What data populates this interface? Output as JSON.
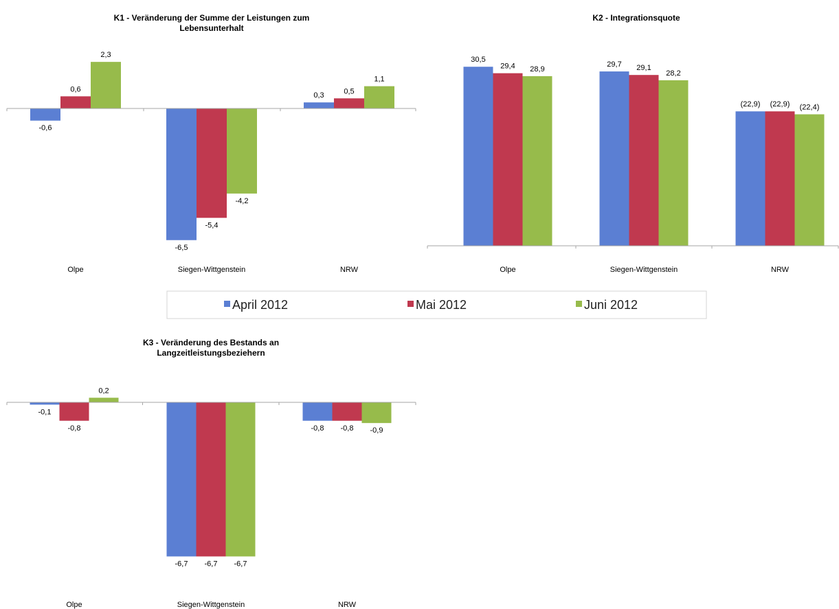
{
  "legend": [
    {
      "name": "April 2012",
      "color": "#5b7fd3"
    },
    {
      "name": "Mai 2012",
      "color": "#c0394f"
    },
    {
      "name": "Juni 2012",
      "color": "#97bb4b"
    }
  ],
  "chart_data": [
    {
      "id": "k1",
      "type": "bar",
      "title": [
        "K1 - Veränderung der Summe der Leistungen zum",
        "Lebensunterhalt"
      ],
      "categories": [
        "Olpe",
        "Siegen-Wittgenstein",
        "NRW"
      ],
      "series": [
        {
          "name": "April 2012",
          "values": [
            -0.6,
            -6.5,
            0.3
          ],
          "labels": [
            "-0,6",
            "-6,5",
            "0,3"
          ]
        },
        {
          "name": "Mai 2012",
          "values": [
            0.6,
            -5.4,
            0.5
          ],
          "labels": [
            "0,6",
            "-5,4",
            "0,5"
          ]
        },
        {
          "name": "Juni 2012",
          "values": [
            2.3,
            -4.2,
            1.1
          ],
          "labels": [
            "2,3",
            "-4,2",
            "1,1"
          ]
        }
      ],
      "ylim": [
        -7.2,
        2.3
      ],
      "grid": false,
      "legend": "bottom"
    },
    {
      "id": "k2",
      "type": "bar",
      "title": [
        "K2 - Integrationsquote"
      ],
      "categories": [
        "Olpe",
        "Siegen-Wittgenstein",
        "NRW"
      ],
      "series": [
        {
          "name": "April 2012",
          "values": [
            30.5,
            29.7,
            22.9
          ],
          "labels": [
            "30,5",
            "29,7",
            "(22,9)"
          ]
        },
        {
          "name": "Mai 2012",
          "values": [
            29.4,
            29.1,
            22.9
          ],
          "labels": [
            "29,4",
            "29,1",
            "(22,9)"
          ]
        },
        {
          "name": "Juni 2012",
          "values": [
            28.9,
            28.2,
            22.4
          ],
          "labels": [
            "28,9",
            "28,2",
            "(22,4)"
          ]
        }
      ],
      "ylim": [
        0,
        30.5
      ],
      "grid": false,
      "legend": "bottom"
    },
    {
      "id": "k3",
      "type": "bar",
      "title": [
        "K3 - Veränderung des Bestands an",
        "Langzeitleistungsbeziehern"
      ],
      "categories": [
        "Olpe",
        "Siegen-Wittgenstein",
        "NRW"
      ],
      "series": [
        {
          "name": "April 2012",
          "values": [
            -0.1,
            -6.7,
            -0.8
          ],
          "labels": [
            "-0,1",
            "-6,7",
            "-0,8"
          ]
        },
        {
          "name": "Mai 2012",
          "values": [
            -0.8,
            -6.7,
            -0.8
          ],
          "labels": [
            "-0,8",
            "-6,7",
            "-0,8"
          ]
        },
        {
          "name": "Juni 2012",
          "values": [
            0.2,
            -6.7,
            -0.9
          ],
          "labels": [
            "0,2",
            "-6,7",
            "-0,9"
          ]
        }
      ],
      "ylim": [
        -6.7,
        0.2
      ],
      "grid": false,
      "legend": "bottom"
    }
  ]
}
